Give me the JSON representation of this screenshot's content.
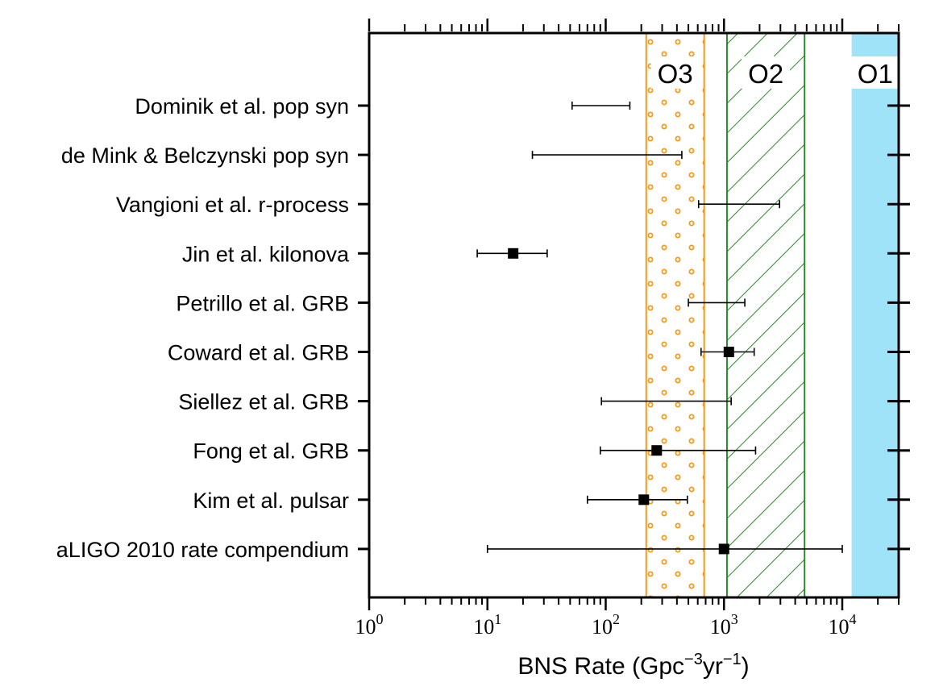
{
  "chart_data": {
    "type": "scatter",
    "orientation": "horizontal",
    "x_scale": "log",
    "xlim": [
      1,
      30000
    ],
    "x_ticks": [
      {
        "value": 1,
        "base": "10",
        "exp": "0"
      },
      {
        "value": 10,
        "base": "10",
        "exp": "1"
      },
      {
        "value": 100,
        "base": "10",
        "exp": "2"
      },
      {
        "value": 1000,
        "base": "10",
        "exp": "3"
      },
      {
        "value": 10000,
        "base": "10",
        "exp": "4"
      }
    ],
    "xlabel": {
      "main": "BNS Rate (Gpc",
      "sup1": "−3",
      "mid": "yr",
      "sup2": "−1",
      "end": ")"
    },
    "ylabel": "",
    "categories": [
      "Dominik et al. pop syn",
      "de Mink & Belczynski pop syn",
      "Vangioni et al. r-process",
      "Jin et al. kilonova",
      "Petrillo et al. GRB",
      "Coward et al. GRB",
      "Siellez et al. GRB",
      "Fong et al. GRB",
      "Kim et al. pulsar",
      "aLIGO 2010 rate compendium"
    ],
    "points": [
      {
        "label": "Dominik et al. pop syn",
        "value": null,
        "low": 52,
        "high": 160
      },
      {
        "label": "de Mink & Belczynski pop syn",
        "value": null,
        "low": 24,
        "high": 440
      },
      {
        "label": "Vangioni et al. r-process",
        "value": null,
        "low": 610,
        "high": 2950
      },
      {
        "label": "Jin et al. kilonova",
        "value": 16.5,
        "low": 8.2,
        "high": 32
      },
      {
        "label": "Petrillo et al. GRB",
        "value": null,
        "low": 500,
        "high": 1500
      },
      {
        "label": "Coward et al. GRB",
        "value": 1100,
        "low": 640,
        "high": 1800
      },
      {
        "label": "Siellez et al. GRB",
        "value": null,
        "low": 92,
        "high": 1150
      },
      {
        "label": "Fong et al. GRB",
        "value": 270,
        "low": 90,
        "high": 1850
      },
      {
        "label": "Kim et al. pulsar",
        "value": 210,
        "low": 70,
        "high": 490
      },
      {
        "label": "aLIGO 2010 rate compendium",
        "value": 1000,
        "low": 10,
        "high": 10000
      }
    ],
    "bands": [
      {
        "label": "O3",
        "low": 220,
        "high": 680,
        "color": "#f39a1a",
        "pattern": "dots"
      },
      {
        "label": "O2",
        "low": 1060,
        "high": 4800,
        "color": "#2a8a2a",
        "pattern": "hatch"
      },
      {
        "label": "O1",
        "low": 12000,
        "high": 30000,
        "color": "#9fe3f8",
        "pattern": "solid"
      }
    ],
    "grid": false,
    "legend": "none"
  }
}
